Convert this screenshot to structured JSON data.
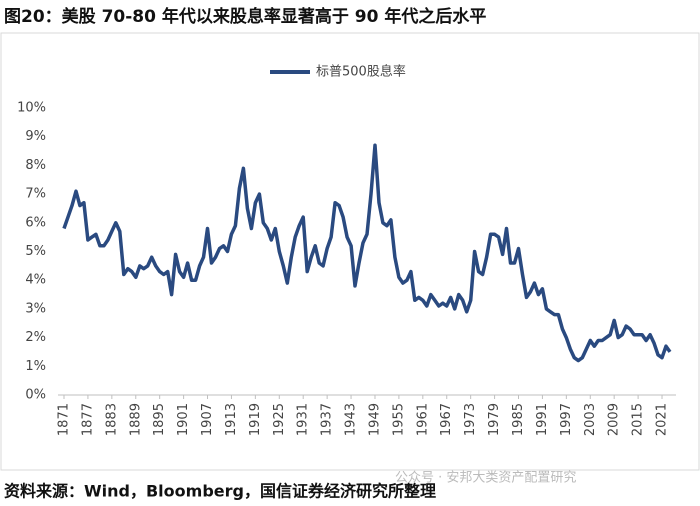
{
  "chart_data": {
    "type": "line",
    "title": "图20：美股 70-80 年代以来股息率显著高于 90 年代之后水平",
    "source": "资料来源：Wind，Bloomberg，国信证券经济研究所整理",
    "watermark": "公众号 · 安邦大类资产配置研究",
    "x": [
      1871,
      1872,
      1873,
      1874,
      1875,
      1876,
      1877,
      1878,
      1879,
      1880,
      1881,
      1882,
      1883,
      1884,
      1885,
      1886,
      1887,
      1888,
      1889,
      1890,
      1891,
      1892,
      1893,
      1894,
      1895,
      1896,
      1897,
      1898,
      1899,
      1900,
      1901,
      1902,
      1903,
      1904,
      1905,
      1906,
      1907,
      1908,
      1909,
      1910,
      1911,
      1912,
      1913,
      1914,
      1915,
      1916,
      1917,
      1918,
      1919,
      1920,
      1921,
      1922,
      1923,
      1924,
      1925,
      1926,
      1927,
      1928,
      1929,
      1930,
      1931,
      1932,
      1933,
      1934,
      1935,
      1936,
      1937,
      1938,
      1939,
      1940,
      1941,
      1942,
      1943,
      1944,
      1945,
      1946,
      1947,
      1948,
      1949,
      1950,
      1951,
      1952,
      1953,
      1954,
      1955,
      1956,
      1957,
      1958,
      1959,
      1960,
      1961,
      1962,
      1963,
      1964,
      1965,
      1966,
      1967,
      1968,
      1969,
      1970,
      1971,
      1972,
      1973,
      1974,
      1975,
      1976,
      1977,
      1978,
      1979,
      1980,
      1981,
      1982,
      1983,
      1984,
      1985,
      1986,
      1987,
      1988,
      1989,
      1990,
      1991,
      1992,
      1993,
      1994,
      1995,
      1996,
      1997,
      1998,
      1999,
      2000,
      2001,
      2002,
      2003,
      2004,
      2005,
      2006,
      2007,
      2008,
      2009,
      2010,
      2011,
      2012,
      2013,
      2014,
      2015,
      2016,
      2017,
      2018,
      2019,
      2020,
      2021,
      2022,
      2023
    ],
    "series": [
      {
        "name": "标普500股息率",
        "color": "#2a4a80",
        "values": [
          5.8,
          6.2,
          6.6,
          7.1,
          6.6,
          6.7,
          5.4,
          5.5,
          5.6,
          5.2,
          5.2,
          5.4,
          5.7,
          6.0,
          5.7,
          4.2,
          4.4,
          4.3,
          4.1,
          4.5,
          4.4,
          4.5,
          4.8,
          4.5,
          4.3,
          4.2,
          4.3,
          3.5,
          4.9,
          4.3,
          4.1,
          4.6,
          4.0,
          4.0,
          4.5,
          4.8,
          5.8,
          4.6,
          4.8,
          5.1,
          5.2,
          5.0,
          5.6,
          5.9,
          7.2,
          7.9,
          6.5,
          5.8,
          6.7,
          7.0,
          6.0,
          5.8,
          5.4,
          5.8,
          5.0,
          4.5,
          3.9,
          4.8,
          5.5,
          5.9,
          6.2,
          4.3,
          4.8,
          5.2,
          4.6,
          4.5,
          5.1,
          5.5,
          6.7,
          6.6,
          6.2,
          5.5,
          5.2,
          3.8,
          4.6,
          5.3,
          5.6,
          7.0,
          8.7,
          6.7,
          6.0,
          5.9,
          6.1,
          4.8,
          4.1,
          3.9,
          4.0,
          4.3,
          3.3,
          3.4,
          3.3,
          3.1,
          3.5,
          3.3,
          3.1,
          3.2,
          3.1,
          3.4,
          3.0,
          3.5,
          3.3,
          2.9,
          3.3,
          5.0,
          4.3,
          4.2,
          4.8,
          5.6,
          5.6,
          5.5,
          4.9,
          5.8,
          4.6,
          4.6,
          5.1,
          4.2,
          3.4,
          3.6,
          3.9,
          3.5,
          3.7,
          3.0,
          2.9,
          2.8,
          2.8,
          2.3,
          2.0,
          1.6,
          1.3,
          1.2,
          1.3,
          1.6,
          1.9,
          1.7,
          1.9,
          1.9,
          2.0,
          2.1,
          2.6,
          2.0,
          2.1,
          2.4,
          2.3,
          2.1,
          2.1,
          2.1,
          1.9,
          2.1,
          1.8,
          1.4,
          1.3,
          1.7,
          1.5
        ]
      }
    ],
    "xlim": [
      1871,
      2023
    ],
    "xticks": [
      1871,
      1877,
      1883,
      1889,
      1895,
      1901,
      1907,
      1913,
      1919,
      1925,
      1931,
      1937,
      1943,
      1949,
      1955,
      1961,
      1967,
      1973,
      1979,
      1985,
      1991,
      1997,
      2003,
      2009,
      2015,
      2021
    ],
    "ylim": [
      0,
      10
    ],
    "yticks": [
      {
        "value": 0,
        "label": "0%"
      },
      {
        "value": 1,
        "label": "1%"
      },
      {
        "value": 2,
        "label": "2%"
      },
      {
        "value": 3,
        "label": "3%"
      },
      {
        "value": 4,
        "label": "4%"
      },
      {
        "value": 5,
        "label": "5%"
      },
      {
        "value": 6,
        "label": "6%"
      },
      {
        "value": 7,
        "label": "7%"
      },
      {
        "value": 8,
        "label": "8%"
      },
      {
        "value": 9,
        "label": "9%"
      },
      {
        "value": 10,
        "label": "10%"
      }
    ],
    "legend": "top"
  }
}
